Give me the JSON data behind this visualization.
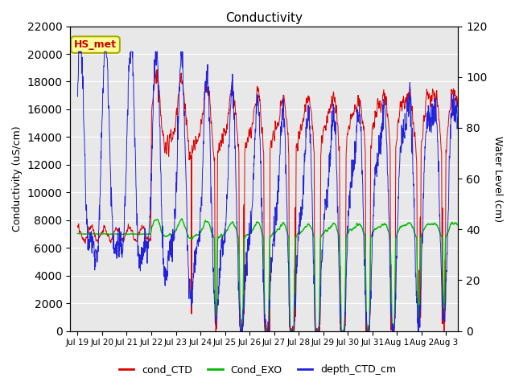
{
  "title": "Conductivity",
  "ylabel_left": "Conductivity (uS/cm)",
  "ylabel_right": "Water Level (cm)",
  "ylim_left": [
    0,
    22000
  ],
  "ylim_right": [
    0,
    120
  ],
  "yticks_left": [
    0,
    2000,
    4000,
    6000,
    8000,
    10000,
    12000,
    14000,
    16000,
    18000,
    20000,
    22000
  ],
  "yticks_right": [
    0,
    20,
    40,
    60,
    80,
    100,
    120
  ],
  "bg_color": "#e8e8e8",
  "legend_labels": [
    "cond_CTD",
    "Cond_EXO",
    "depth_CTD_cm"
  ],
  "legend_colors": [
    "#dd0000",
    "#00bb00",
    "#2222dd"
  ],
  "hs_met_label": "HS_met",
  "hs_met_facecolor": "#ffff99",
  "hs_met_edgecolor": "#aaaa00",
  "hs_met_textcolor": "#cc0000",
  "xtick_labels": [
    "Jul 19",
    "Jul 20",
    "Jul 21",
    "Jul 22",
    "Jul 23",
    "Jul 24",
    "Jul 25",
    "Jul 26",
    "Jul 27",
    "Jul 28",
    "Jul 29",
    "Jul 30",
    "Jul 31",
    "Aug 1",
    "Aug 2",
    "Aug 3"
  ]
}
